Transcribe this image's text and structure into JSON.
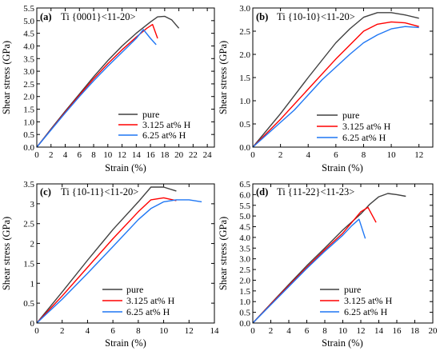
{
  "chart_data": [
    {
      "type": "line",
      "panel": "(a)",
      "title": "Ti {0001}<11-20>",
      "xlabel": "Strain (%)",
      "ylabel": "Shear stress (GPa)",
      "xlim": [
        0,
        25
      ],
      "ylim": [
        0,
        5.5
      ],
      "xticks": [
        "0",
        "2",
        "4",
        "6",
        "8",
        "10",
        "12",
        "14",
        "16",
        "18",
        "20",
        "22",
        "24"
      ],
      "yticks": [
        "0.0",
        "0.5",
        "1.0",
        "1.5",
        "2.0",
        "2.5",
        "3.0",
        "3.5",
        "4.0",
        "4.5",
        "5.0",
        "5.5"
      ],
      "legend_position": "bottom-right",
      "series": [
        {
          "name": "pure",
          "color": "#404040",
          "points": [
            [
              0,
              0
            ],
            [
              2,
              0.72
            ],
            [
              4,
              1.42
            ],
            [
              6,
              2.1
            ],
            [
              8,
              2.78
            ],
            [
              10,
              3.42
            ],
            [
              12,
              4.0
            ],
            [
              14,
              4.5
            ],
            [
              16,
              4.95
            ],
            [
              17,
              5.15
            ],
            [
              18,
              5.17
            ],
            [
              19,
              5.03
            ],
            [
              20,
              4.7
            ]
          ]
        },
        {
          "name": "3.125 at% H",
          "color": "#ff0000",
          "points": [
            [
              0,
              0
            ],
            [
              2,
              0.7
            ],
            [
              4,
              1.38
            ],
            [
              6,
              2.05
            ],
            [
              8,
              2.7
            ],
            [
              10,
              3.3
            ],
            [
              12,
              3.85
            ],
            [
              14,
              4.35
            ],
            [
              15.5,
              4.7
            ],
            [
              16.3,
              4.85
            ],
            [
              17,
              4.3
            ]
          ]
        },
        {
          "name": "6.25 at% H",
          "color": "#1f77f4",
          "points": [
            [
              0,
              0
            ],
            [
              2,
              0.68
            ],
            [
              4,
              1.35
            ],
            [
              6,
              2.0
            ],
            [
              8,
              2.62
            ],
            [
              10,
              3.2
            ],
            [
              12,
              3.75
            ],
            [
              14,
              4.3
            ],
            [
              15,
              4.65
            ],
            [
              16,
              4.3
            ],
            [
              16.8,
              4.05
            ]
          ]
        }
      ]
    },
    {
      "type": "line",
      "panel": "(b)",
      "title": "Ti {10-10}<11-20>",
      "xlabel": "Strain (%)",
      "ylabel": "Shear stress (GPa)",
      "xlim": [
        0,
        13
      ],
      "ylim": [
        0,
        3.0
      ],
      "xticks": [
        "0",
        "2",
        "4",
        "6",
        "8",
        "10",
        "12"
      ],
      "yticks": [
        "0.0",
        "0.5",
        "1.0",
        "1.5",
        "2.0",
        "2.5",
        "3.0"
      ],
      "legend_position": "bottom-right",
      "series": [
        {
          "name": "pure",
          "color": "#404040",
          "points": [
            [
              0,
              0
            ],
            [
              2,
              0.72
            ],
            [
              4,
              1.5
            ],
            [
              6,
              2.25
            ],
            [
              7,
              2.55
            ],
            [
              8,
              2.8
            ],
            [
              9,
              2.9
            ],
            [
              10,
              2.9
            ],
            [
              11,
              2.85
            ],
            [
              12,
              2.78
            ]
          ]
        },
        {
          "name": "3.125 at% H",
          "color": "#ff0000",
          "points": [
            [
              0,
              0
            ],
            [
              2,
              0.6
            ],
            [
              4,
              1.25
            ],
            [
              6,
              1.9
            ],
            [
              7,
              2.2
            ],
            [
              8,
              2.5
            ],
            [
              9,
              2.65
            ],
            [
              10,
              2.7
            ],
            [
              11,
              2.68
            ],
            [
              12,
              2.6
            ]
          ]
        },
        {
          "name": "6.25 at% H",
          "color": "#1f77f4",
          "points": [
            [
              0,
              0
            ],
            [
              3,
              0.8
            ],
            [
              5,
              1.45
            ],
            [
              7,
              2.0
            ],
            [
              8,
              2.25
            ],
            [
              9,
              2.42
            ],
            [
              10,
              2.55
            ],
            [
              11,
              2.6
            ],
            [
              12,
              2.58
            ]
          ]
        }
      ]
    },
    {
      "type": "line",
      "panel": "(c)",
      "title": "Ti {10-11}<11-20>",
      "xlabel": "Strain (%)",
      "ylabel": "Shear stress (GPa)",
      "xlim": [
        0,
        14
      ],
      "ylim": [
        0,
        3.5
      ],
      "xticks": [
        "0",
        "2",
        "4",
        "6",
        "8",
        "10",
        "12",
        "14"
      ],
      "yticks": [
        "0",
        "0.5",
        "1",
        "1.5",
        "2",
        "2.5",
        "3",
        "3.5"
      ],
      "legend_position": "bottom-right",
      "series": [
        {
          "name": "pure",
          "color": "#404040",
          "points": [
            [
              0,
              0
            ],
            [
              2,
              0.78
            ],
            [
              4,
              1.58
            ],
            [
              6,
              2.35
            ],
            [
              8,
              3.05
            ],
            [
              9,
              3.42
            ],
            [
              10,
              3.42
            ],
            [
              11,
              3.32
            ]
          ]
        },
        {
          "name": "3.125 at% H",
          "color": "#ff0000",
          "points": [
            [
              0,
              0
            ],
            [
              2,
              0.68
            ],
            [
              4,
              1.4
            ],
            [
              6,
              2.12
            ],
            [
              8,
              2.8
            ],
            [
              9,
              3.1
            ],
            [
              10,
              3.15
            ],
            [
              11,
              3.08
            ]
          ]
        },
        {
          "name": "6.25 at% H",
          "color": "#1f77f4",
          "points": [
            [
              0,
              0
            ],
            [
              2,
              0.6
            ],
            [
              4,
              1.25
            ],
            [
              6,
              1.92
            ],
            [
              8,
              2.6
            ],
            [
              9,
              2.88
            ],
            [
              10,
              3.05
            ],
            [
              11,
              3.1
            ],
            [
              12,
              3.1
            ],
            [
              13,
              3.05
            ]
          ]
        }
      ]
    },
    {
      "type": "line",
      "panel": "(d)",
      "title": "Ti {11-22}<11-23>",
      "xlabel": "Strain (%)",
      "ylabel": "Shear stress (GPa)",
      "xlim": [
        0,
        20
      ],
      "ylim": [
        0,
        6.5
      ],
      "xticks": [
        "0",
        "2",
        "4",
        "6",
        "8",
        "10",
        "12",
        "14",
        "16",
        "18",
        "20"
      ],
      "yticks": [
        "0.0",
        "0.5",
        "1.0",
        "1.5",
        "2.0",
        "2.5",
        "3.0",
        "3.5",
        "4.0",
        "4.5",
        "5.0",
        "5.5",
        "6.0",
        "6.5"
      ],
      "legend_position": "bottom-right",
      "series": [
        {
          "name": "pure",
          "color": "#404040",
          "points": [
            [
              0,
              0
            ],
            [
              2,
              0.9
            ],
            [
              4,
              1.8
            ],
            [
              6,
              2.68
            ],
            [
              8,
              3.5
            ],
            [
              10,
              4.35
            ],
            [
              12,
              5.1
            ],
            [
              13,
              5.55
            ],
            [
              14,
              5.9
            ],
            [
              15,
              6.05
            ],
            [
              16,
              6.0
            ],
            [
              17,
              5.92
            ]
          ]
        },
        {
          "name": "3.125 at% H",
          "color": "#ff0000",
          "points": [
            [
              0,
              0
            ],
            [
              2,
              0.88
            ],
            [
              4,
              1.75
            ],
            [
              6,
              2.6
            ],
            [
              8,
              3.42
            ],
            [
              10,
              4.2
            ],
            [
              11,
              4.7
            ],
            [
              12,
              5.2
            ],
            [
              12.8,
              5.4
            ],
            [
              13.7,
              4.7
            ]
          ]
        },
        {
          "name": "6.25 at% H",
          "color": "#1f77f4",
          "points": [
            [
              0,
              0
            ],
            [
              2,
              0.85
            ],
            [
              4,
              1.7
            ],
            [
              6,
              2.55
            ],
            [
              8,
              3.35
            ],
            [
              10,
              4.1
            ],
            [
              11,
              4.55
            ],
            [
              11.8,
              4.85
            ],
            [
              12.5,
              3.95
            ]
          ]
        }
      ]
    }
  ]
}
